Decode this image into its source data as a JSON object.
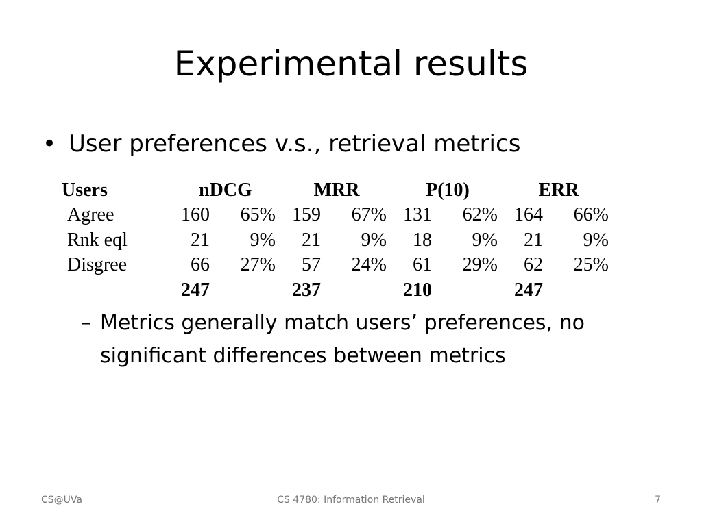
{
  "slide": {
    "title": "Experimental results",
    "bullet": "User preferences v.s., retrieval metrics",
    "table": {
      "headers": [
        "Users",
        "nDCG",
        "MRR",
        "P(10)",
        "ERR"
      ],
      "rows": [
        {
          "label": "Agree",
          "cells": [
            "160",
            "65%",
            "159",
            "67%",
            "131",
            "62%",
            "164",
            "66%"
          ]
        },
        {
          "label": "Rnk eql",
          "cells": [
            "21",
            "9%",
            "21",
            "9%",
            "18",
            "9%",
            "21",
            "9%"
          ]
        },
        {
          "label": "Disgree",
          "cells": [
            "66",
            "27%",
            "57",
            "24%",
            "61",
            "29%",
            "62",
            "25%"
          ]
        }
      ],
      "totals": [
        "247",
        "237",
        "210",
        "247"
      ]
    },
    "sub_bullet_dash": "–",
    "sub_bullet": "Metrics generally match users’ preferences, no significant differences between metrics",
    "bullet_char": "•"
  },
  "footer": {
    "left": "CS@UVa",
    "center": "CS 4780: Information Retrieval",
    "right": "7"
  }
}
